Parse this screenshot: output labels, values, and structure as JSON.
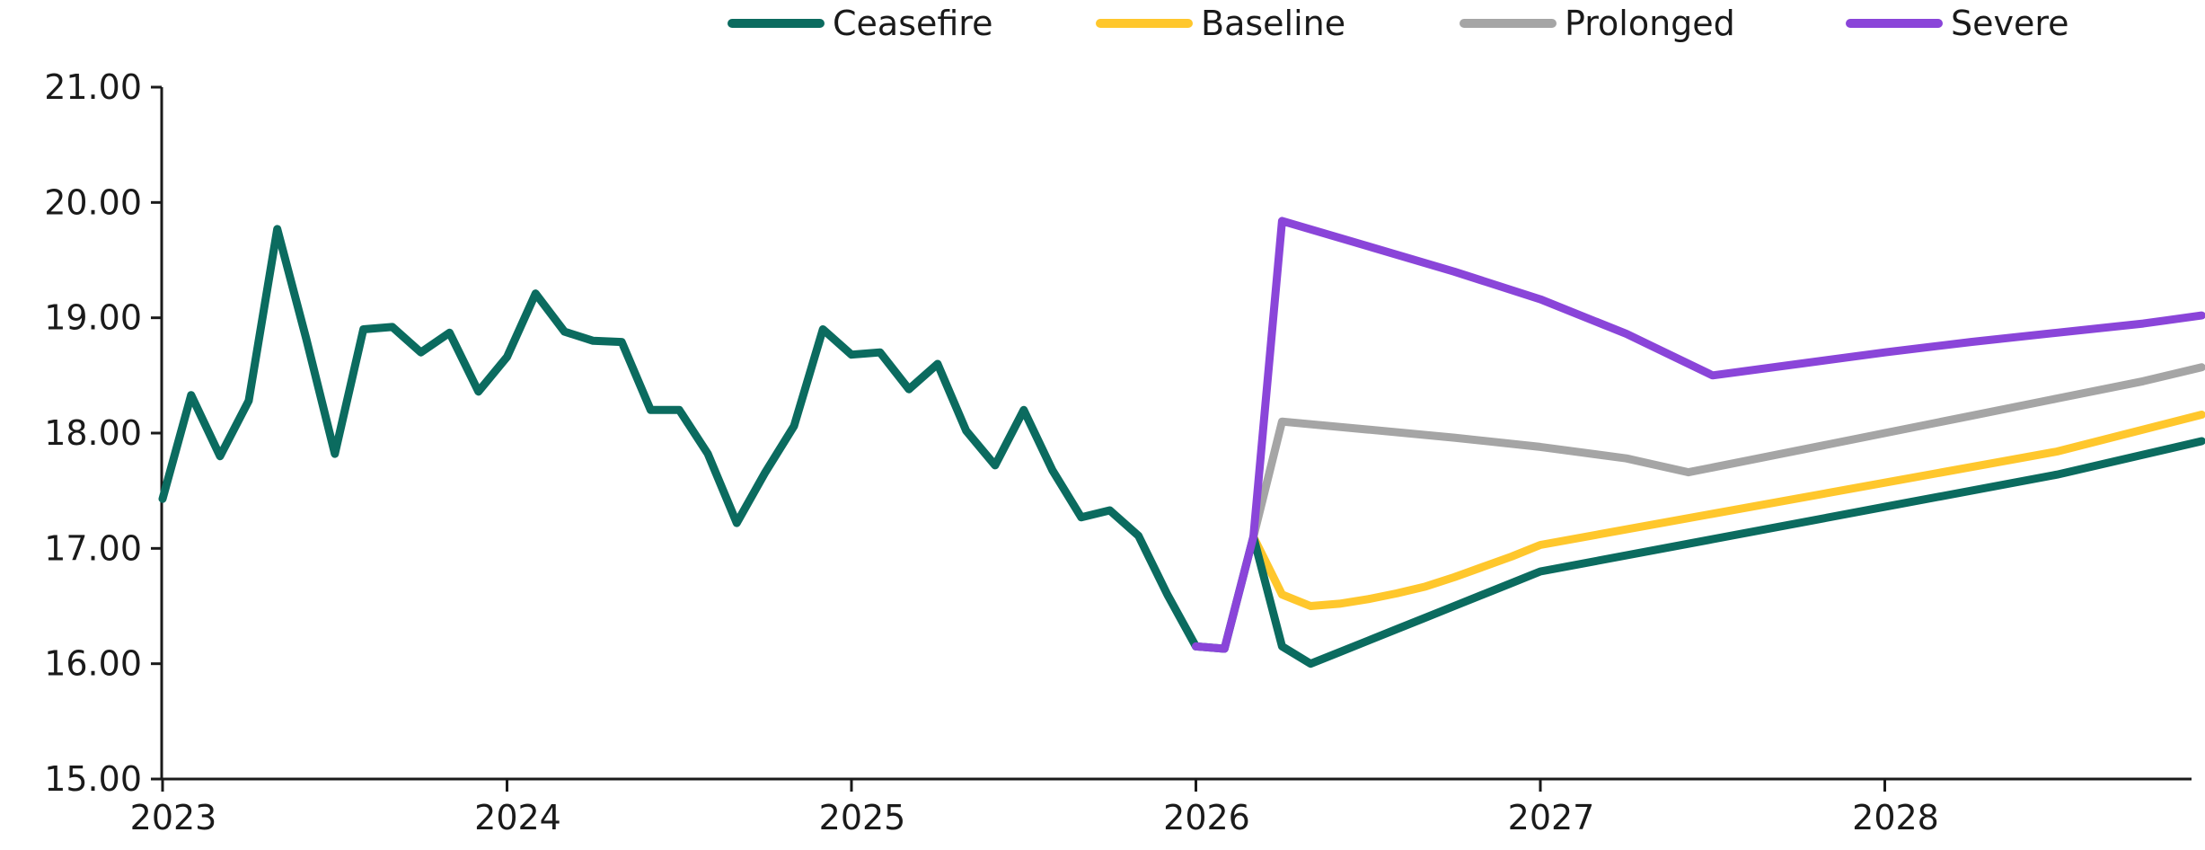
{
  "chart_data": {
    "type": "line",
    "title": "",
    "xlabel": "",
    "ylabel": "",
    "ylim": [
      15,
      21
    ],
    "xlim": [
      2023,
      2028.92
    ],
    "grid": false,
    "legend_position": "top",
    "y_ticks": [
      "15.00",
      "16.00",
      "17.00",
      "18.00",
      "19.00",
      "20.00",
      "21.00"
    ],
    "x_ticks": [
      "2023",
      "2024",
      "2025",
      "2026",
      "2027",
      "2028"
    ],
    "series": [
      {
        "name": "Ceasefire",
        "color": "#0b6b5f",
        "x": [
          2023.0,
          2023.083,
          2023.167,
          2023.25,
          2023.333,
          2023.417,
          2023.5,
          2023.583,
          2023.667,
          2023.75,
          2023.833,
          2023.917,
          2024.0,
          2024.083,
          2024.167,
          2024.25,
          2024.333,
          2024.417,
          2024.5,
          2024.583,
          2024.667,
          2024.75,
          2024.833,
          2024.917,
          2025.0,
          2025.083,
          2025.167,
          2025.25,
          2025.333,
          2025.417,
          2025.5,
          2025.583,
          2025.667,
          2025.75,
          2025.833,
          2025.917,
          2026.0,
          2026.083,
          2026.167,
          2026.25,
          2026.333,
          2026.417,
          2026.5,
          2026.583,
          2026.667,
          2026.75,
          2026.833,
          2026.917,
          2027.0,
          2027.5,
          2028.0,
          2028.5,
          2028.92
        ],
        "values": [
          17.43,
          18.33,
          17.8,
          18.28,
          19.77,
          18.82,
          17.82,
          18.9,
          18.92,
          18.7,
          18.87,
          18.36,
          18.66,
          19.21,
          18.88,
          18.8,
          18.79,
          18.2,
          18.2,
          17.82,
          17.22,
          17.66,
          18.06,
          18.9,
          18.68,
          18.7,
          18.38,
          18.6,
          18.02,
          17.72,
          18.2,
          17.68,
          17.27,
          17.33,
          17.11,
          16.6,
          16.15,
          16.13,
          17.1,
          16.15,
          16.0,
          16.1,
          16.2,
          16.3,
          16.4,
          16.5,
          16.6,
          16.7,
          16.8,
          17.08,
          17.36,
          17.64,
          17.93
        ]
      },
      {
        "name": "Baseline",
        "color": "#ffc72c",
        "x": [
          2026.167,
          2026.25,
          2026.333,
          2026.417,
          2026.5,
          2026.583,
          2026.667,
          2026.75,
          2026.833,
          2026.917,
          2027.0,
          2027.5,
          2028.0,
          2028.5,
          2028.92
        ],
        "values": [
          17.1,
          16.6,
          16.5,
          16.52,
          16.56,
          16.61,
          16.67,
          16.75,
          16.84,
          16.93,
          17.03,
          17.3,
          17.57,
          17.84,
          18.16
        ]
      },
      {
        "name": "Prolonged",
        "color": "#a5a5a5",
        "x": [
          2026.167,
          2026.25,
          2026.5,
          2026.75,
          2027.0,
          2027.25,
          2027.43,
          2027.75,
          2028.0,
          2028.25,
          2028.5,
          2028.75,
          2028.92
        ],
        "values": [
          17.1,
          18.1,
          18.03,
          17.96,
          17.88,
          17.78,
          17.66,
          17.85,
          18.0,
          18.15,
          18.3,
          18.45,
          18.57
        ]
      },
      {
        "name": "Severe",
        "color": "#8a45d9",
        "x": [
          2026.0,
          2026.083,
          2026.167,
          2026.25,
          2026.5,
          2026.75,
          2027.0,
          2027.25,
          2027.5,
          2027.75,
          2028.0,
          2028.25,
          2028.5,
          2028.75,
          2028.92
        ],
        "values": [
          16.15,
          16.13,
          17.1,
          19.84,
          19.62,
          19.4,
          19.16,
          18.86,
          18.5,
          18.6,
          18.7,
          18.79,
          18.87,
          18.95,
          19.02
        ]
      }
    ]
  }
}
